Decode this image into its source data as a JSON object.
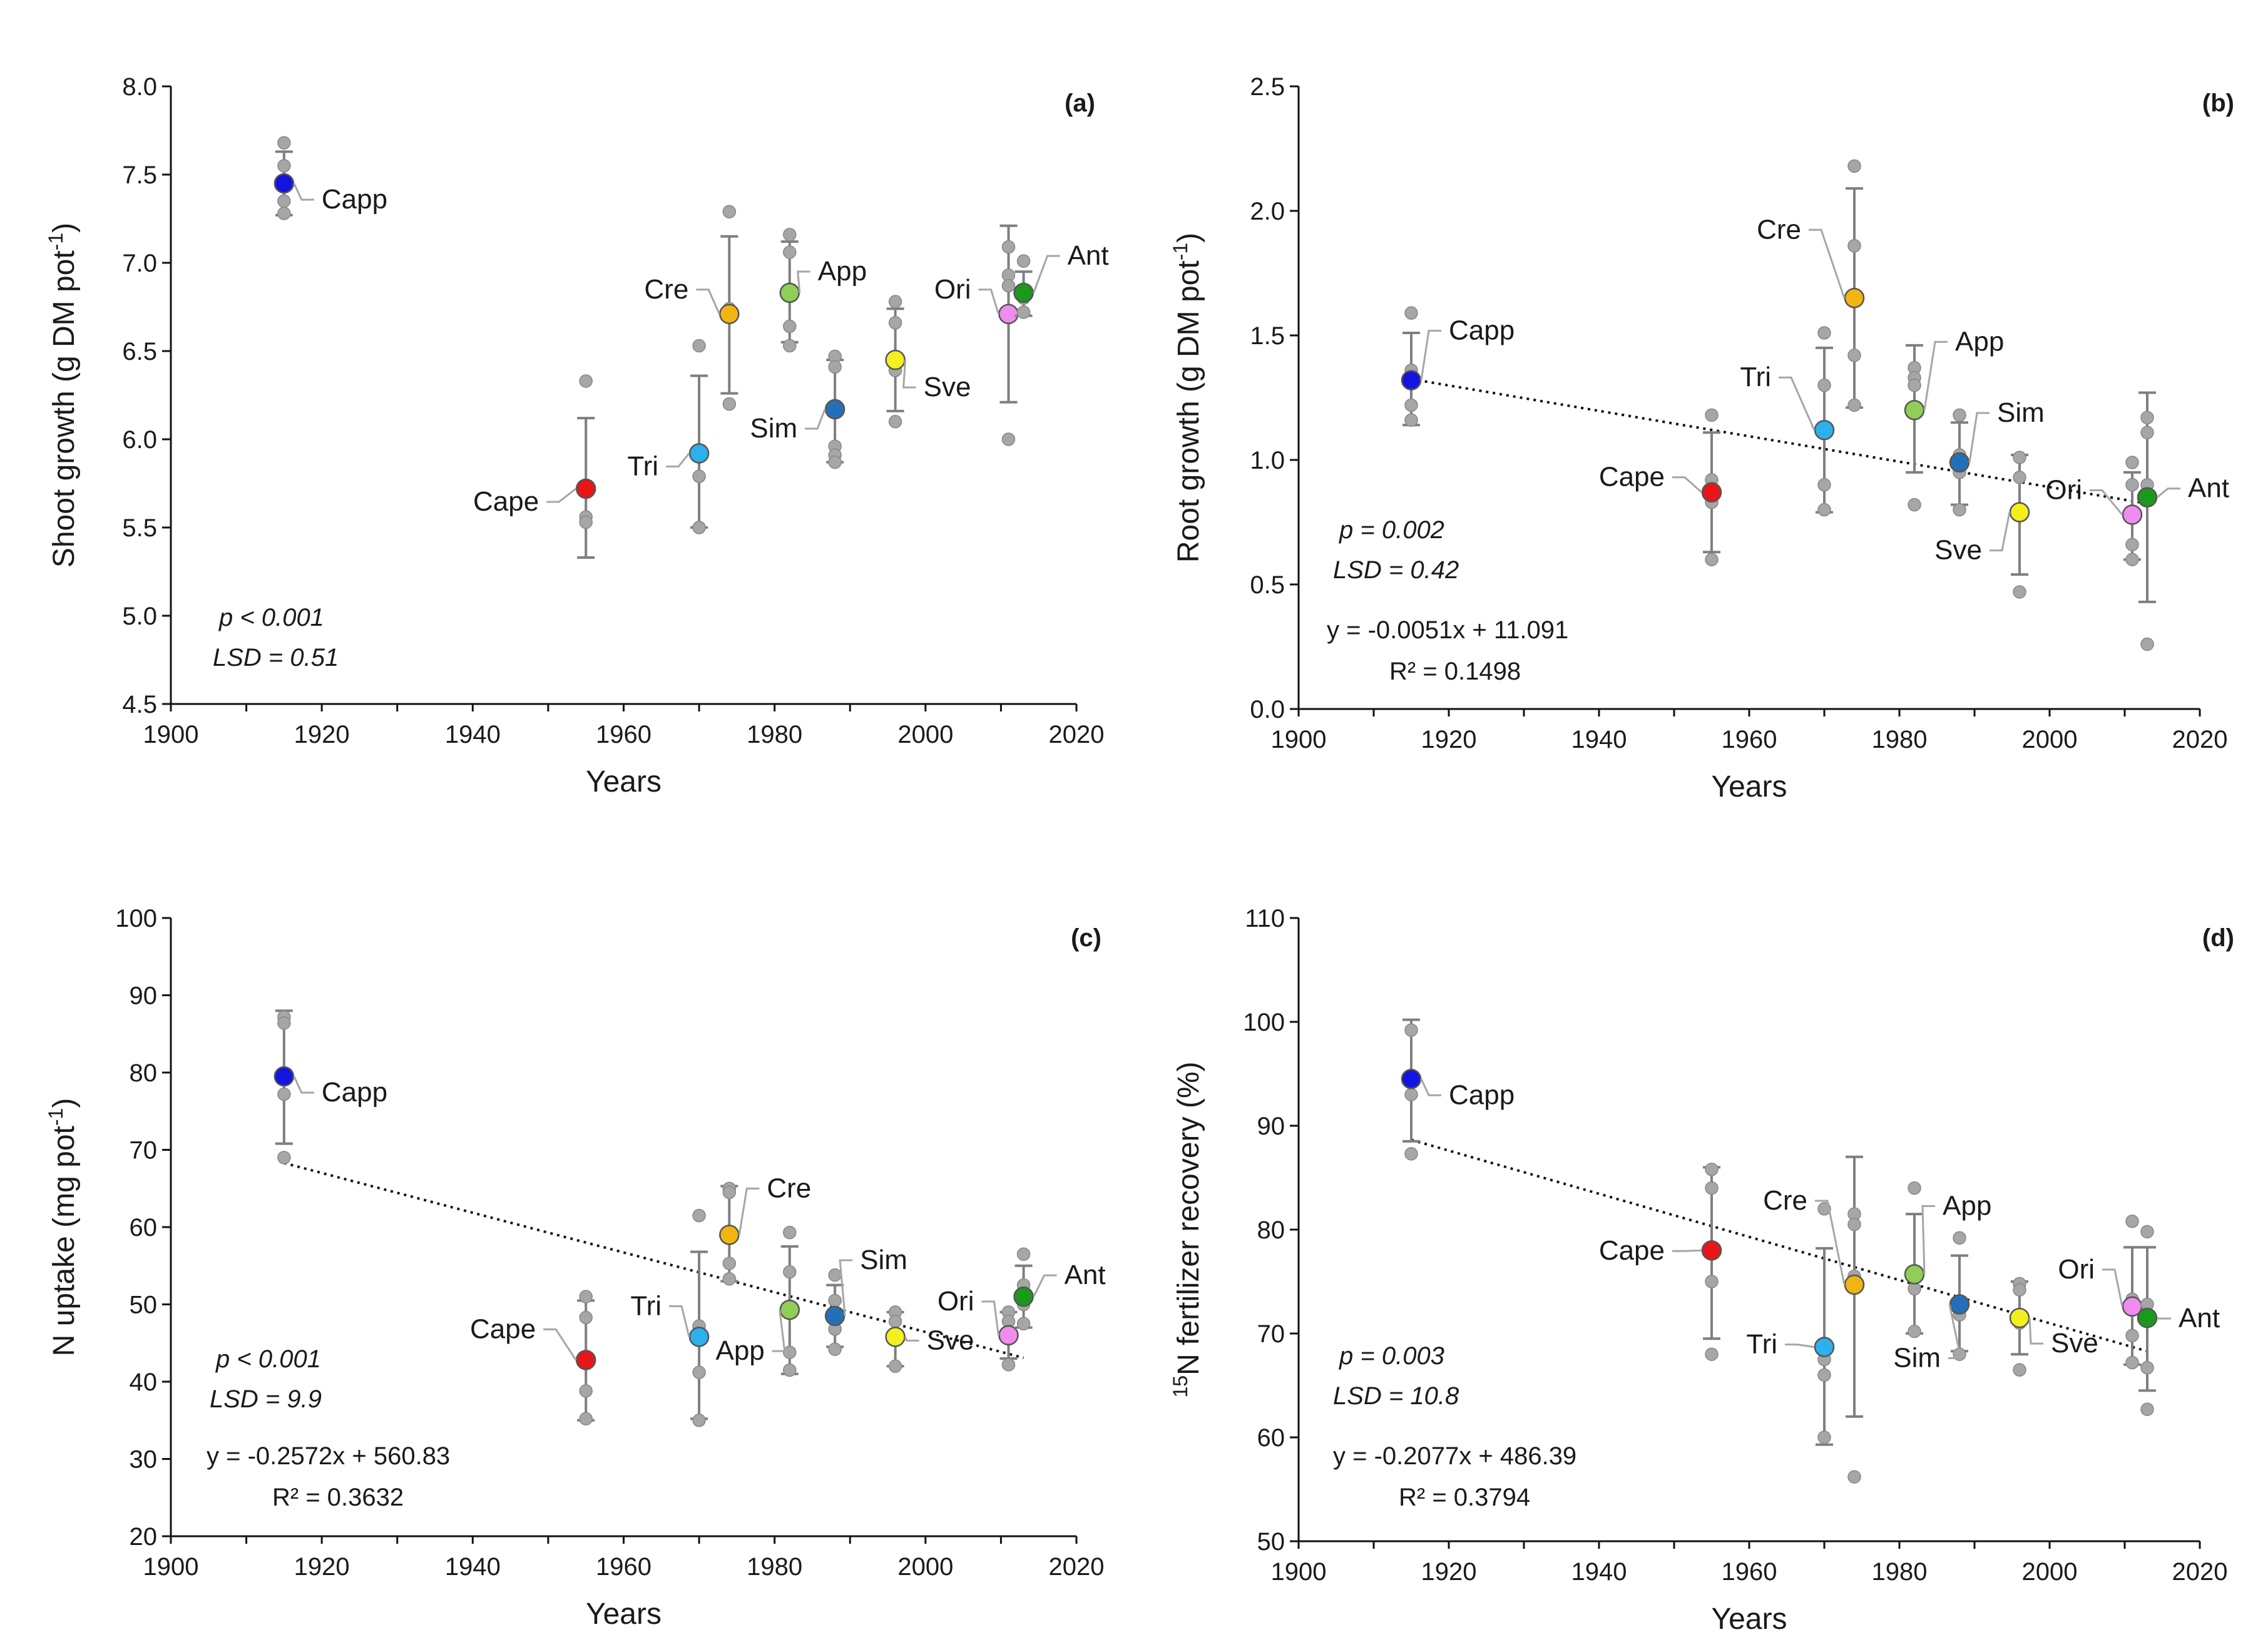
{
  "chart_data": [
    {
      "panel": "(a)",
      "type": "scatter",
      "xlabel": "Years",
      "ylabel": "Shoot growth (g DM pot-1)",
      "ylabel_main": "Shoot growth (g DM pot",
      "ylabel_sup": "-1",
      "ylabel_end": ")",
      "xlim": [
        1900,
        2020
      ],
      "ylim": [
        4.5,
        8.0
      ],
      "xticks": [
        1900,
        1920,
        1940,
        1960,
        1980,
        2000,
        2020
      ],
      "yticks": [
        4.5,
        5.0,
        5.5,
        6.0,
        6.5,
        7.0,
        7.5,
        8.0
      ],
      "decimals": 1,
      "stats": [
        "p < 0.001",
        "LSD = 0.51"
      ],
      "trendline": null,
      "points": [
        {
          "name": "Capp",
          "year": 1915,
          "mean": 7.45,
          "err": [
            7.27,
            7.63
          ],
          "reps": [
            7.68,
            7.55,
            7.35,
            7.28
          ]
        },
        {
          "name": "Cape",
          "year": 1955,
          "mean": 5.72,
          "err": [
            5.33,
            6.12
          ],
          "reps": [
            6.33,
            5.56,
            5.53
          ]
        },
        {
          "name": "Tri",
          "year": 1970,
          "mean": 5.92,
          "err": [
            5.5,
            6.36
          ],
          "reps": [
            6.53,
            5.91,
            5.79,
            5.5
          ]
        },
        {
          "name": "Cre",
          "year": 1974,
          "mean": 6.71,
          "err": [
            6.26,
            7.15
          ],
          "reps": [
            7.29,
            6.74,
            6.2
          ]
        },
        {
          "name": "App",
          "year": 1982,
          "mean": 6.83,
          "err": [
            6.55,
            7.12
          ],
          "reps": [
            7.16,
            7.06,
            6.64,
            6.53
          ]
        },
        {
          "name": "Sim",
          "year": 1988,
          "mean": 6.17,
          "err": [
            5.87,
            6.45
          ],
          "reps": [
            6.47,
            6.41,
            5.96,
            5.91,
            5.87
          ]
        },
        {
          "name": "Sve",
          "year": 1996,
          "mean": 6.45,
          "err": [
            6.16,
            6.74
          ],
          "reps": [
            6.78,
            6.66,
            6.39,
            6.1
          ]
        },
        {
          "name": "Ori",
          "year": 2011,
          "mean": 6.71,
          "err": [
            6.21,
            7.21
          ],
          "reps": [
            7.09,
            6.93,
            6.87,
            6.0
          ]
        },
        {
          "name": "Ant",
          "year": 2013,
          "mean": 6.83,
          "err": [
            6.7,
            6.95
          ],
          "reps": [
            7.01,
            6.8,
            6.72
          ]
        }
      ]
    },
    {
      "panel": "(b)",
      "type": "scatter",
      "xlabel": "Years",
      "ylabel": "Root growth (g DM pot-1)",
      "ylabel_main": "Root growth (g DM pot",
      "ylabel_sup": "-1",
      "ylabel_end": ")",
      "xlim": [
        1900,
        2020
      ],
      "ylim": [
        0.0,
        2.5
      ],
      "xticks": [
        1900,
        1920,
        1940,
        1960,
        1980,
        2000,
        2020
      ],
      "yticks": [
        0.0,
        0.5,
        1.0,
        1.5,
        2.0,
        2.5
      ],
      "decimals": 1,
      "stats": [
        "p = 0.002",
        "LSD = 0.42"
      ],
      "trendline": {
        "equation": "y = -0.0051x + 11.091",
        "r2": "R² = 0.1498",
        "slope": -0.0051,
        "intercept": 11.091
      },
      "points": [
        {
          "name": "Capp",
          "year": 1915,
          "mean": 1.32,
          "err": [
            1.14,
            1.51
          ],
          "reps": [
            1.59,
            1.36,
            1.22,
            1.16
          ]
        },
        {
          "name": "Cape",
          "year": 1955,
          "mean": 0.87,
          "err": [
            0.63,
            1.11
          ],
          "reps": [
            1.18,
            0.92,
            0.83,
            0.6
          ]
        },
        {
          "name": "Tri",
          "year": 1970,
          "mean": 1.12,
          "err": [
            0.79,
            1.45
          ],
          "reps": [
            1.51,
            1.3,
            0.9,
            0.8
          ]
        },
        {
          "name": "Cre",
          "year": 1974,
          "mean": 1.65,
          "err": [
            1.21,
            2.09
          ],
          "reps": [
            2.18,
            1.86,
            1.42,
            1.22
          ]
        },
        {
          "name": "App",
          "year": 1982,
          "mean": 1.2,
          "err": [
            0.95,
            1.46
          ],
          "reps": [
            1.37,
            1.33,
            1.3,
            0.82
          ]
        },
        {
          "name": "Sim",
          "year": 1988,
          "mean": 0.99,
          "err": [
            0.82,
            1.15
          ],
          "reps": [
            1.18,
            1.02,
            0.95,
            0.8
          ]
        },
        {
          "name": "Sve",
          "year": 1996,
          "mean": 0.79,
          "err": [
            0.54,
            1.02
          ],
          "reps": [
            1.01,
            0.93,
            0.47
          ]
        },
        {
          "name": "Ori",
          "year": 2011,
          "mean": 0.78,
          "err": [
            0.6,
            0.95
          ],
          "reps": [
            0.99,
            0.9,
            0.66,
            0.6
          ]
        },
        {
          "name": "Ant",
          "year": 2013,
          "mean": 0.85,
          "err": [
            0.43,
            1.27
          ],
          "reps": [
            1.17,
            1.11,
            0.9,
            0.26
          ]
        }
      ]
    },
    {
      "panel": "(c)",
      "type": "scatter",
      "xlabel": "Years",
      "ylabel": "N uptake (mg pot-1)",
      "ylabel_main": "N uptake (mg pot",
      "ylabel_sup": "-1",
      "ylabel_end": ")",
      "xlim": [
        1900,
        2020
      ],
      "ylim": [
        20,
        100
      ],
      "xticks": [
        1900,
        1920,
        1940,
        1960,
        1980,
        2000,
        2020
      ],
      "yticks": [
        20,
        30,
        40,
        50,
        60,
        70,
        80,
        90,
        100
      ],
      "decimals": 0,
      "stats": [
        "p < 0.001",
        "LSD = 9.9"
      ],
      "trendline": {
        "equation": "y = -0.2572x + 560.83",
        "r2": "R² = 0.3632",
        "slope": -0.2572,
        "intercept": 560.83
      },
      "points": [
        {
          "name": "Capp",
          "year": 1915,
          "mean": 79.5,
          "err": [
            70.8,
            88.0
          ],
          "reps": [
            87.2,
            86.4,
            77.2,
            69.0
          ]
        },
        {
          "name": "Cape",
          "year": 1955,
          "mean": 42.8,
          "err": [
            35.0,
            50.5
          ],
          "reps": [
            51.0,
            48.3,
            38.8,
            35.2
          ]
        },
        {
          "name": "Tri",
          "year": 1970,
          "mean": 45.8,
          "err": [
            35.2,
            56.8
          ],
          "reps": [
            61.5,
            47.2,
            41.2,
            35.0
          ]
        },
        {
          "name": "Cre",
          "year": 1974,
          "mean": 59.0,
          "err": [
            53.0,
            65.3
          ],
          "reps": [
            65.0,
            64.5,
            55.3,
            53.3
          ]
        },
        {
          "name": "App",
          "year": 1982,
          "mean": 49.3,
          "err": [
            41.0,
            57.5
          ],
          "reps": [
            59.3,
            54.2,
            43.8,
            41.5
          ]
        },
        {
          "name": "Sim",
          "year": 1988,
          "mean": 48.5,
          "err": [
            44.5,
            52.5
          ],
          "reps": [
            53.8,
            50.5,
            46.8,
            44.2
          ]
        },
        {
          "name": "Sve",
          "year": 1996,
          "mean": 45.8,
          "err": [
            42.0,
            49.0
          ],
          "reps": [
            49.0,
            47.8,
            42.0
          ]
        },
        {
          "name": "Ori",
          "year": 2011,
          "mean": 46.0,
          "err": [
            43.0,
            49.0
          ],
          "reps": [
            49.0,
            47.8,
            46.5,
            42.2
          ]
        },
        {
          "name": "Ant",
          "year": 2013,
          "mean": 51.0,
          "err": [
            47.0,
            55.0
          ],
          "reps": [
            56.5,
            52.5,
            50.0,
            47.5
          ]
        }
      ]
    },
    {
      "panel": "(d)",
      "type": "scatter",
      "xlabel": "Years",
      "ylabel": "15N fertilizer recovery (%)",
      "ylabel_main": "N fertilizer recovery (%)",
      "ylabel_sup_pre": "15",
      "xlim": [
        1900,
        2020
      ],
      "ylim": [
        50,
        110
      ],
      "xticks": [
        1900,
        1920,
        1940,
        1960,
        1980,
        2000,
        2020
      ],
      "yticks": [
        50,
        60,
        70,
        80,
        90,
        100,
        110
      ],
      "decimals": 0,
      "stats": [
        "p = 0.003",
        "LSD = 10.8"
      ],
      "trendline": {
        "equation": "y = -0.2077x + 486.39",
        "r2": "R² = 0.3794",
        "slope": -0.2077,
        "intercept": 486.39
      },
      "points": [
        {
          "name": "Capp",
          "year": 1915,
          "mean": 94.5,
          "err": [
            88.5,
            100.2
          ],
          "reps": [
            99.2,
            93.0,
            87.3
          ]
        },
        {
          "name": "Cape",
          "year": 1955,
          "mean": 78.0,
          "err": [
            69.5,
            86.0
          ],
          "reps": [
            85.8,
            84.0,
            75.0,
            68.0
          ]
        },
        {
          "name": "Tri",
          "year": 1970,
          "mean": 68.7,
          "err": [
            59.3,
            78.2
          ],
          "reps": [
            82.0,
            67.5,
            66.0,
            60.0
          ]
        },
        {
          "name": "Cre",
          "year": 1974,
          "mean": 74.7,
          "err": [
            62.0,
            87.0
          ],
          "reps": [
            81.5,
            80.5,
            75.5,
            56.2
          ]
        },
        {
          "name": "App",
          "year": 1982,
          "mean": 75.7,
          "err": [
            70.0,
            81.5
          ],
          "reps": [
            84.0,
            75.5,
            74.3,
            70.2
          ]
        },
        {
          "name": "Sim",
          "year": 1988,
          "mean": 72.8,
          "err": [
            68.3,
            77.5
          ],
          "reps": [
            79.2,
            73.0,
            71.8,
            68.0
          ]
        },
        {
          "name": "Sve",
          "year": 1996,
          "mean": 71.5,
          "err": [
            68.0,
            75.0
          ],
          "reps": [
            74.8,
            74.2,
            71.0,
            66.5
          ]
        },
        {
          "name": "Ori",
          "year": 2011,
          "mean": 72.6,
          "err": [
            67.0,
            78.3
          ],
          "reps": [
            80.8,
            73.3,
            69.8,
            67.2
          ]
        },
        {
          "name": "Ant",
          "year": 2013,
          "mean": 71.5,
          "err": [
            64.5,
            78.3
          ],
          "reps": [
            79.8,
            72.8,
            66.7,
            62.7
          ]
        }
      ]
    }
  ],
  "colors": {
    "Capp": "#1414e0",
    "Cape": "#e81616",
    "Tri": "#2db0ee",
    "Cre": "#f2b411",
    "App": "#8fce57",
    "Sim": "#2470b8",
    "Sve": "#f4f01e",
    "Ori": "#f08cf0",
    "Ant": "#1a9a1a",
    "replicate": "#a6a6a6",
    "error_bar": "#7f7f7f",
    "axis": "#111111"
  }
}
